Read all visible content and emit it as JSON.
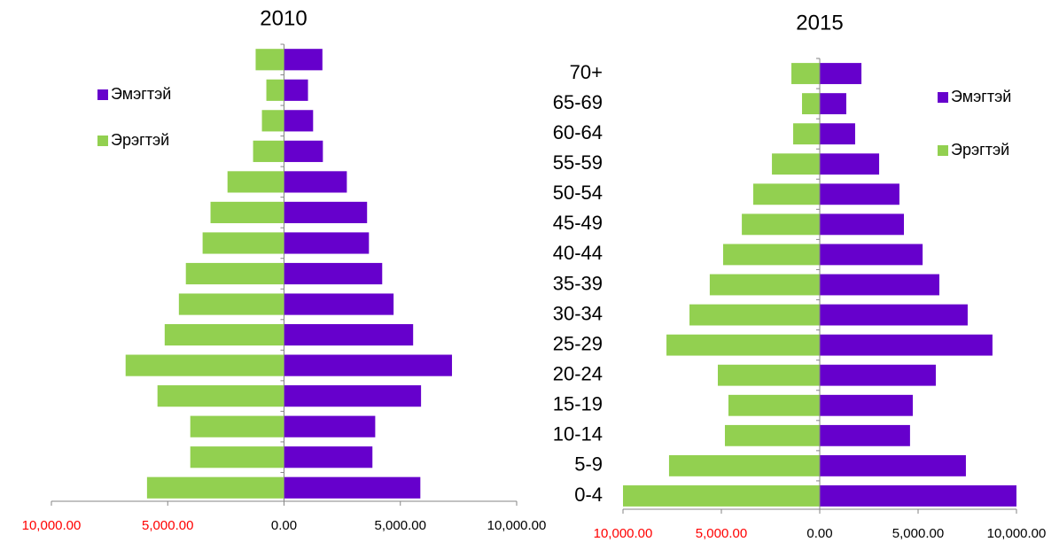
{
  "chart_data": [
    {
      "type": "pyramid",
      "title": "2010",
      "categories": [
        null,
        null,
        null,
        null,
        null,
        null,
        null,
        null,
        null,
        null,
        null,
        null,
        null,
        null,
        null
      ],
      "series": [
        {
          "name": "Эмэгтэй",
          "color": "#6600cc",
          "values": [
            1650,
            1030,
            1250,
            1670,
            2700,
            3570,
            3650,
            4220,
            4710,
            5550,
            7220,
            5890,
            3920,
            3800,
            5860
          ]
        },
        {
          "name": "Эрэгтэй",
          "color": "#92d050",
          "values": [
            -1220,
            -760,
            -950,
            -1330,
            -2430,
            -3160,
            -3500,
            -4220,
            -4520,
            -5130,
            -6810,
            -5440,
            -4030,
            -4030,
            -5890
          ]
        }
      ],
      "xlim": [
        -10000,
        10000
      ],
      "xticks": [
        {
          "value": -10000,
          "label": "10,000.00"
        },
        {
          "value": -5000,
          "label": "5,000.00"
        },
        {
          "value": 0,
          "label": "0.00"
        },
        {
          "value": 5000,
          "label": "5,000.00"
        },
        {
          "value": 10000,
          "label": "10,000.00"
        }
      ],
      "negative_tick_color": "#ff0000"
    },
    {
      "type": "pyramid",
      "title": "2015",
      "categories": [
        "70+",
        "65-69",
        "60-64",
        "55-59",
        "50-54",
        "45-49",
        "40-44",
        "35-39",
        "30-34",
        "25-29",
        "20-24",
        "15-19",
        "10-14",
        "5-9",
        "0-4"
      ],
      "series": [
        {
          "name": "Эмэгтэй",
          "color": "#6600cc",
          "values": [
            2120,
            1350,
            1800,
            3020,
            4050,
            4280,
            5230,
            6080,
            7520,
            8780,
            5900,
            4730,
            4590,
            7430,
            10000
          ]
        },
        {
          "name": "Эрэгтэй",
          "color": "#92d050",
          "values": [
            -1440,
            -900,
            -1350,
            -2430,
            -3380,
            -3960,
            -4910,
            -5590,
            -6620,
            -7790,
            -5180,
            -4640,
            -4820,
            -7660,
            -10000
          ]
        }
      ],
      "xlim": [
        -10000,
        10000
      ],
      "xticks": [
        {
          "value": -10000,
          "label": "10,000.00"
        },
        {
          "value": -5000,
          "label": "5,000.00"
        },
        {
          "value": 0,
          "label": "0.00"
        },
        {
          "value": 5000,
          "label": "5,000.00"
        },
        {
          "value": 10000,
          "label": "10,000.00"
        }
      ],
      "negative_tick_color": "#ff0000"
    }
  ]
}
